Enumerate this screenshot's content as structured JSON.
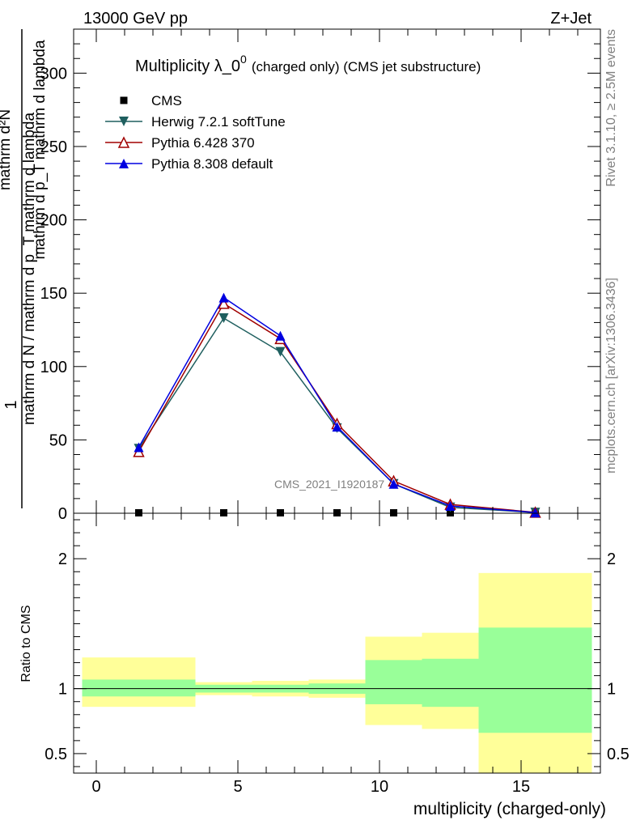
{
  "header": {
    "energy": "13000 GeV pp",
    "process": "Z+Jet"
  },
  "right_labels": {
    "rivet": "Rivet 3.1.10, ≥ 2.5M events",
    "source": "mcplots.cern.ch [arXiv:1306.3436]"
  },
  "watermark": "CMS_2021_I1920187",
  "chart_data": [
    {
      "type": "line",
      "title_main": "Multiplicity λ_0",
      "title_sup": "0",
      "title_note": "(charged only) (CMS jet substructure)",
      "ylabel_lines": [
        "1",
        "mathrm d N / mathrm d p_T mathrm d lambda",
        "mathrm d²N",
        "mathrm d p_T mathrm d lambda"
      ],
      "xlim": [
        -0.8,
        17.8
      ],
      "ylim": [
        0,
        330
      ],
      "yticks": [
        0,
        50,
        100,
        150,
        200,
        250,
        300
      ],
      "legend_position": "top-left",
      "x": [
        1.5,
        4.5,
        6.5,
        8.5,
        10.5,
        12.5,
        15.5
      ],
      "series": [
        {
          "name": "CMS",
          "marker": "square",
          "color": "#000000",
          "values": [
            0.3,
            0.3,
            0.3,
            0.3,
            0.3,
            0.3,
            0.3
          ]
        },
        {
          "name": "Herwig 7.2.1 softTune",
          "marker": "triangle-down",
          "color": "#1f5f5f",
          "values": [
            44,
            133,
            110,
            58,
            20,
            4,
            0.5
          ]
        },
        {
          "name": "Pythia 6.428 370",
          "marker": "triangle-open",
          "color": "#a00000",
          "values": [
            42,
            143,
            119,
            61,
            22,
            6,
            0.6
          ]
        },
        {
          "name": "Pythia 8.308 default",
          "marker": "triangle-up",
          "color": "#0000e0",
          "values": [
            45,
            147,
            121,
            59,
            20,
            5,
            0.5
          ]
        }
      ]
    },
    {
      "type": "area",
      "ylabel": "Ratio to CMS",
      "xlabel": "multiplicity (charged-only)",
      "xlim": [
        -0.8,
        17.8
      ],
      "ylim": [
        0.35,
        2.35
      ],
      "xticks": [
        0,
        5,
        10,
        15
      ],
      "yticks": [
        0.5,
        1,
        2
      ],
      "reference": 1,
      "bins": [
        {
          "lo": -0.5,
          "hi": 3.5,
          "yellow": [
            0.86,
            1.24
          ],
          "green": [
            0.94,
            1.07
          ]
        },
        {
          "lo": 3.5,
          "hi": 5.5,
          "yellow": [
            0.95,
            1.05
          ],
          "green": [
            0.97,
            1.03
          ]
        },
        {
          "lo": 5.5,
          "hi": 7.5,
          "yellow": [
            0.94,
            1.06
          ],
          "green": [
            0.97,
            1.03
          ]
        },
        {
          "lo": 7.5,
          "hi": 9.5,
          "yellow": [
            0.93,
            1.07
          ],
          "green": [
            0.96,
            1.04
          ]
        },
        {
          "lo": 9.5,
          "hi": 11.5,
          "yellow": [
            0.72,
            1.4
          ],
          "green": [
            0.88,
            1.22
          ]
        },
        {
          "lo": 11.5,
          "hi": 13.5,
          "yellow": [
            0.69,
            1.43
          ],
          "green": [
            0.86,
            1.23
          ]
        },
        {
          "lo": 13.5,
          "hi": 17.5,
          "yellow": [
            0.35,
            1.89
          ],
          "green": [
            0.66,
            1.47
          ]
        }
      ],
      "band_colors": {
        "yellow": "#ffff99",
        "green": "#99ff99"
      }
    }
  ]
}
